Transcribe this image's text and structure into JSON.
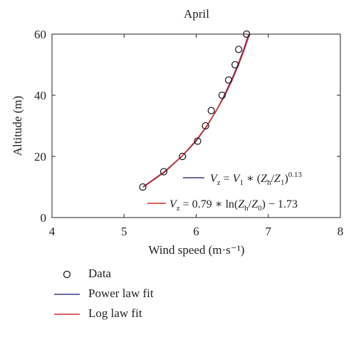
{
  "chart_data": {
    "type": "line",
    "title": "April",
    "xlabel": "Wind speed (m·s⁻¹)",
    "ylabel": "Altitude (m)",
    "xlim": [
      4,
      8
    ],
    "ylim": [
      0,
      60
    ],
    "xticks": [
      "4",
      "5",
      "6",
      "7",
      "8"
    ],
    "yticks": [
      "0",
      "20",
      "40",
      "60"
    ],
    "grid": false,
    "series": [
      {
        "name": "Data",
        "kind": "scatter",
        "marker": "open-circle",
        "color": "#231f20",
        "x": [
          5.26,
          5.55,
          5.81,
          6.02,
          6.13,
          6.21,
          6.36,
          6.45,
          6.54,
          6.59,
          6.7
        ],
        "y": [
          10,
          15,
          20,
          25,
          30,
          35,
          40,
          45,
          50,
          55,
          60
        ]
      },
      {
        "name": "Power law fit",
        "kind": "line",
        "color": "#3a3a8c",
        "x": [
          5.26,
          5.56,
          5.8,
          6.0,
          6.15,
          6.28,
          6.39,
          6.49,
          6.58,
          6.66,
          6.73
        ],
        "y": [
          10,
          15,
          20,
          25,
          30,
          35,
          40,
          45,
          50,
          55,
          60
        ]
      },
      {
        "name": "Log law fit",
        "kind": "line",
        "color": "#d12a2a",
        "x": [
          5.27,
          5.57,
          5.8,
          5.99,
          6.15,
          6.28,
          6.4,
          6.5,
          6.59,
          6.67,
          6.74
        ],
        "y": [
          10,
          15,
          20,
          25,
          30,
          35,
          40,
          45,
          50,
          55,
          60
        ]
      }
    ],
    "inner_legend": {
      "placement": "bottom-right",
      "entries": [
        {
          "series": "Power law fit",
          "color": "#3a3a8c"
        },
        {
          "series": "Log law fit",
          "color": "#d12a2a"
        }
      ]
    },
    "bottom_legend": [
      {
        "label": "Data",
        "symbol": "open-circle",
        "color": "#231f20"
      },
      {
        "label": "Power law fit",
        "symbol": "line",
        "color": "#3a3a8c"
      },
      {
        "label": "Log law fit",
        "symbol": "line",
        "color": "#d12a2a"
      }
    ]
  }
}
